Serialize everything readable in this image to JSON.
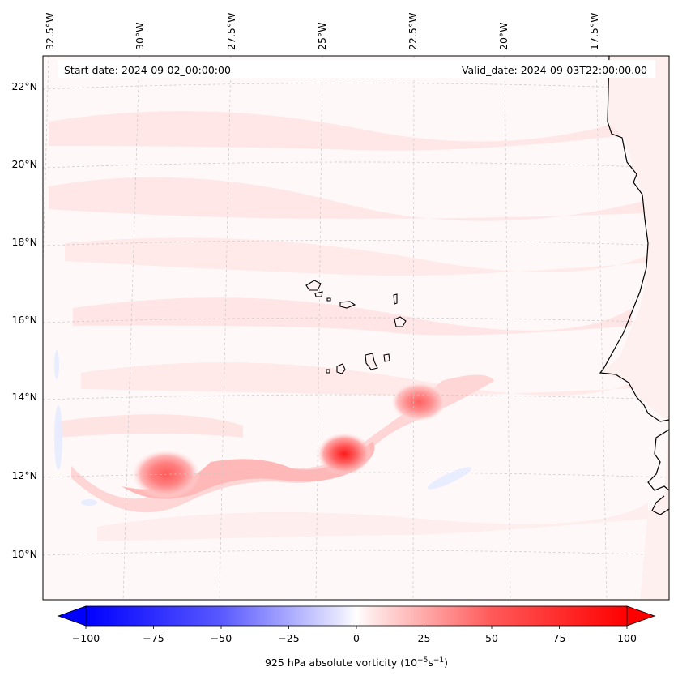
{
  "header": {
    "start_date": "Start date: 2024-09-02_00:00:00",
    "valid_date": "Valid_date: 2024-09-03T22:00:00.00"
  },
  "axes": {
    "lon_labels": [
      "32.5°W",
      "30°W",
      "27.5°W",
      "25°W",
      "22.5°W",
      "20°W",
      "17.5°W"
    ],
    "lat_labels": [
      "22°N",
      "20°N",
      "18°N",
      "16°N",
      "14°N",
      "12°N",
      "10°N"
    ]
  },
  "colorbar": {
    "ticks": [
      "−100",
      "−75",
      "−50",
      "−25",
      "0",
      "25",
      "50",
      "75",
      "100"
    ],
    "label_main": "925 hPa absolute vorticity (10",
    "label_exp1": "−5",
    "label_mid": "s",
    "label_exp2": "−1",
    "label_close": ")",
    "colors": {
      "negative": "#0000ff",
      "zero": "#ffffff",
      "positive": "#ff0000"
    }
  },
  "map": {
    "ocean_color": "#fff8f8",
    "coastline_color": "#000000",
    "grid_color": "#c8c8c8"
  }
}
